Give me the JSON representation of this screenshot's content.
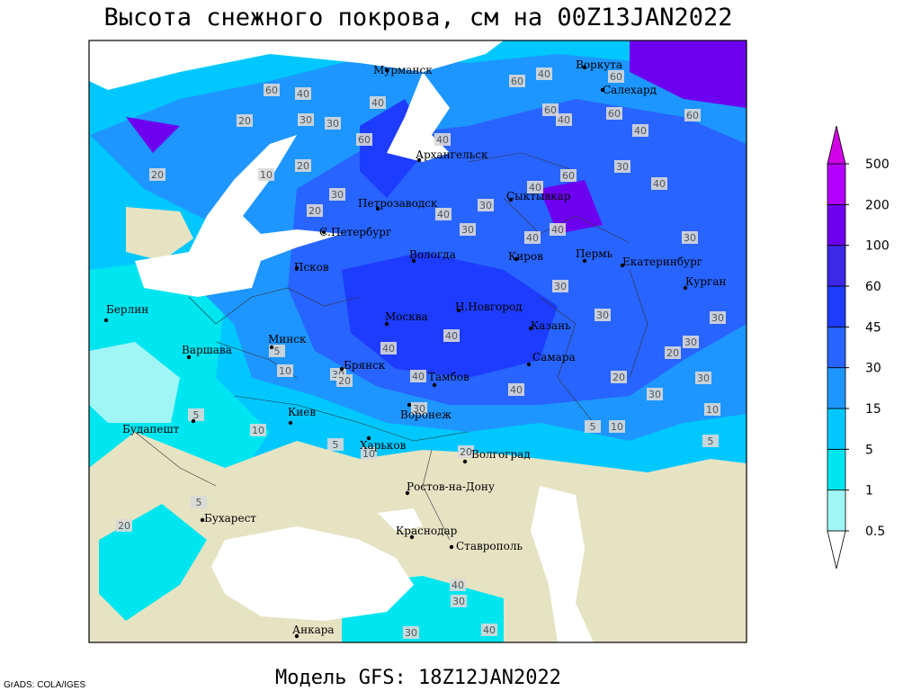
{
  "title": "Высота снежного покрова, см на 00Z13JAN2022",
  "subtitle": "Модель GFS: 18Z12JAN2022",
  "credit": "GrADS: COLA/IGES",
  "legend": {
    "levels": [
      0.5,
      1,
      5,
      15,
      30,
      45,
      60,
      100,
      200,
      500
    ],
    "colors": [
      "#ffffff",
      "#a0f5f5",
      "#00e6f0",
      "#00c8ff",
      "#1e96ff",
      "#2864ff",
      "#1e3cff",
      "#3c28e6",
      "#6e00f0",
      "#b400ff",
      "#d200e6"
    ]
  },
  "cities": [
    "Мурманск",
    "Воркута",
    "Салехард",
    "Архангельск",
    "Петрозаводск",
    "Сыктывкар",
    "С.Петербург",
    "Вологда",
    "Киров",
    "Пермь",
    "Екатеринбург",
    "Псков",
    "Курган",
    "Берлин",
    "Москва",
    "Н.Новгород",
    "Казань",
    "Минск",
    "Варшава",
    "Самара",
    "Брянск",
    "Тамбов",
    "Киев",
    "Воронеж",
    "Будапешт",
    "Харьков",
    "Волгоград",
    "Ростов-на-Дону",
    "Бухарест",
    "Краснодар",
    "Ставрополь",
    "Анкара"
  ],
  "contour_labels": [
    60,
    40,
    40,
    20,
    30,
    30,
    60,
    40,
    60,
    40,
    60,
    40,
    60,
    60,
    60,
    40,
    20,
    10,
    20,
    30,
    40,
    60,
    30,
    40,
    30,
    20,
    40,
    40,
    30,
    40,
    30,
    30,
    30,
    30,
    30,
    20,
    30,
    40,
    40,
    30,
    20,
    40,
    40,
    20,
    30,
    10,
    10,
    5,
    10,
    5,
    30,
    20,
    5,
    10,
    5,
    10,
    5,
    20,
    40,
    30,
    40,
    30,
    5
  ]
}
